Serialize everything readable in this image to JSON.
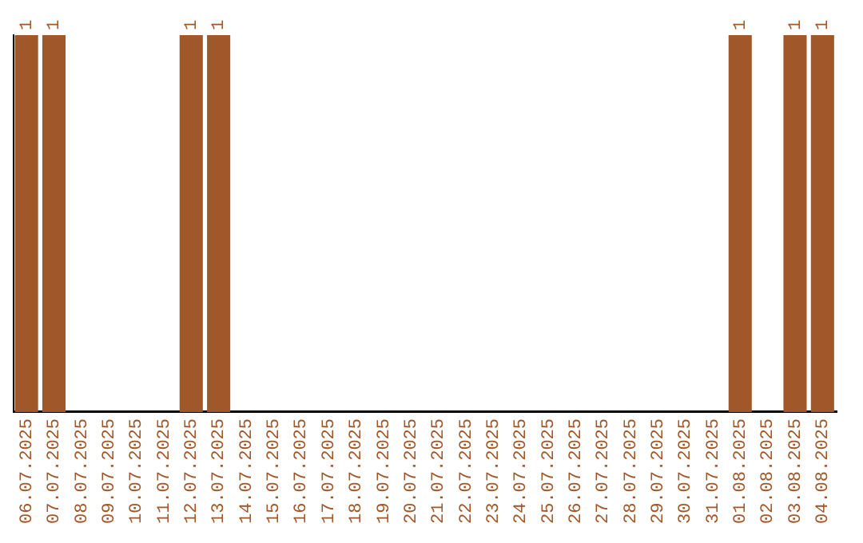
{
  "chart_data": {
    "type": "bar",
    "categories": [
      "06.07.2025",
      "07.07.2025",
      "08.07.2025",
      "09.07.2025",
      "10.07.2025",
      "11.07.2025",
      "12.07.2025",
      "13.07.2025",
      "14.07.2025",
      "15.07.2025",
      "16.07.2025",
      "17.07.2025",
      "18.07.2025",
      "19.07.2025",
      "20.07.2025",
      "21.07.2025",
      "22.07.2025",
      "23.07.2025",
      "24.07.2025",
      "25.07.2025",
      "26.07.2025",
      "27.07.2025",
      "28.07.2025",
      "29.07.2025",
      "30.07.2025",
      "31.07.2025",
      "01.08.2025",
      "02.08.2025",
      "03.08.2025",
      "04.08.2025"
    ],
    "values": [
      1,
      1,
      null,
      null,
      null,
      null,
      1,
      1,
      null,
      null,
      null,
      null,
      null,
      null,
      null,
      null,
      null,
      null,
      null,
      null,
      null,
      null,
      null,
      null,
      null,
      null,
      1,
      null,
      1,
      1
    ],
    "color": "#a0572a",
    "data_labels": true,
    "grid": false,
    "legend": false
  }
}
